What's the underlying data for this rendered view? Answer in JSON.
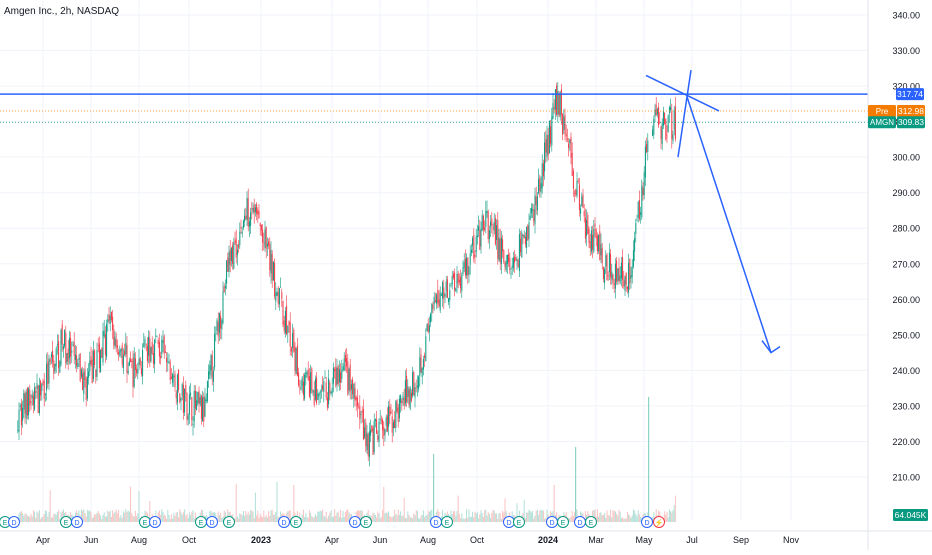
{
  "header": {
    "symbol_title": "Amgen Inc., 2h, NASDAQ"
  },
  "price_scale": {
    "ticks": [
      "340.00",
      "330.00",
      "320.00",
      "310.00",
      "300.00",
      "290.00",
      "280.00",
      "270.00",
      "260.00",
      "250.00",
      "240.00",
      "230.00",
      "220.00",
      "210.00"
    ],
    "range": [
      205,
      345
    ]
  },
  "time_axis": {
    "labels": [
      {
        "text": "Apr",
        "bold": false
      },
      {
        "text": "Jun",
        "bold": false
      },
      {
        "text": "Aug",
        "bold": false
      },
      {
        "text": "Oct",
        "bold": false
      },
      {
        "text": "2023",
        "bold": true
      },
      {
        "text": "Apr",
        "bold": false
      },
      {
        "text": "Jun",
        "bold": false
      },
      {
        "text": "Aug",
        "bold": false
      },
      {
        "text": "Oct",
        "bold": false
      },
      {
        "text": "2024",
        "bold": true
      },
      {
        "text": "Mar",
        "bold": false
      },
      {
        "text": "May",
        "bold": false
      },
      {
        "text": "Jul",
        "bold": false
      },
      {
        "text": "Sep",
        "bold": false
      },
      {
        "text": "Nov",
        "bold": false
      }
    ]
  },
  "price_tags": {
    "drawn_level": {
      "value": "317.74",
      "price": 317.74,
      "color": "#2962ff"
    },
    "premarket": {
      "label": "Pre",
      "value": "312.98",
      "price": 312.98,
      "color": "#f57c00"
    },
    "last": {
      "label": "AMGN",
      "value": "309.83",
      "price": 309.83,
      "color": "#089981"
    },
    "volume": {
      "value": "64.045K",
      "color": "#089981"
    }
  },
  "event_markers": [
    "E",
    "D",
    "E",
    "D",
    "E",
    "D",
    "E",
    "D",
    "E",
    "D",
    "E",
    "D",
    "E",
    "D",
    "E",
    "D",
    "E",
    "D",
    "E",
    "D",
    "E",
    "D",
    "⚡"
  ],
  "colors": {
    "up": "#089981",
    "down": "#f23645",
    "drawing": "#2962ff",
    "grid": "#f0f3fa",
    "text": "#131722"
  },
  "chart_data": {
    "type": "candlestick",
    "title": "Amgen Inc., 2h, NASDAQ",
    "ylim": [
      205,
      345
    ],
    "path_points": [
      {
        "date": "2022-02",
        "price": 228
      },
      {
        "date": "2022-03",
        "price": 233
      },
      {
        "date": "2022-04",
        "price": 248
      },
      {
        "date": "2022-05",
        "price": 236
      },
      {
        "date": "2022-06",
        "price": 252
      },
      {
        "date": "2022-07",
        "price": 240
      },
      {
        "date": "2022-08",
        "price": 248
      },
      {
        "date": "2022-09",
        "price": 232
      },
      {
        "date": "2022-10",
        "price": 228
      },
      {
        "date": "2022-11",
        "price": 270
      },
      {
        "date": "2022-12",
        "price": 288
      },
      {
        "date": "2023-01",
        "price": 265
      },
      {
        "date": "2023-02",
        "price": 238
      },
      {
        "date": "2023-03",
        "price": 232
      },
      {
        "date": "2023-04",
        "price": 240
      },
      {
        "date": "2023-05",
        "price": 220
      },
      {
        "date": "2023-06",
        "price": 226
      },
      {
        "date": "2023-07",
        "price": 238
      },
      {
        "date": "2023-08",
        "price": 262
      },
      {
        "date": "2023-09",
        "price": 268
      },
      {
        "date": "2023-10",
        "price": 282
      },
      {
        "date": "2023-11",
        "price": 268
      },
      {
        "date": "2023-12",
        "price": 285
      },
      {
        "date": "2024-01",
        "price": 318
      },
      {
        "date": "2024-02",
        "price": 284
      },
      {
        "date": "2024-03",
        "price": 270
      },
      {
        "date": "2024-04",
        "price": 266
      },
      {
        "date": "2024-05",
        "price": 310
      },
      {
        "date": "2024-06",
        "price": 310
      }
    ],
    "horizontal_level": 317.74,
    "drawings": [
      {
        "kind": "projection_arrow",
        "from": {
          "date": "2024-06",
          "price": 317
        },
        "to": {
          "date": "2024-09",
          "price": 245
        }
      }
    ]
  }
}
